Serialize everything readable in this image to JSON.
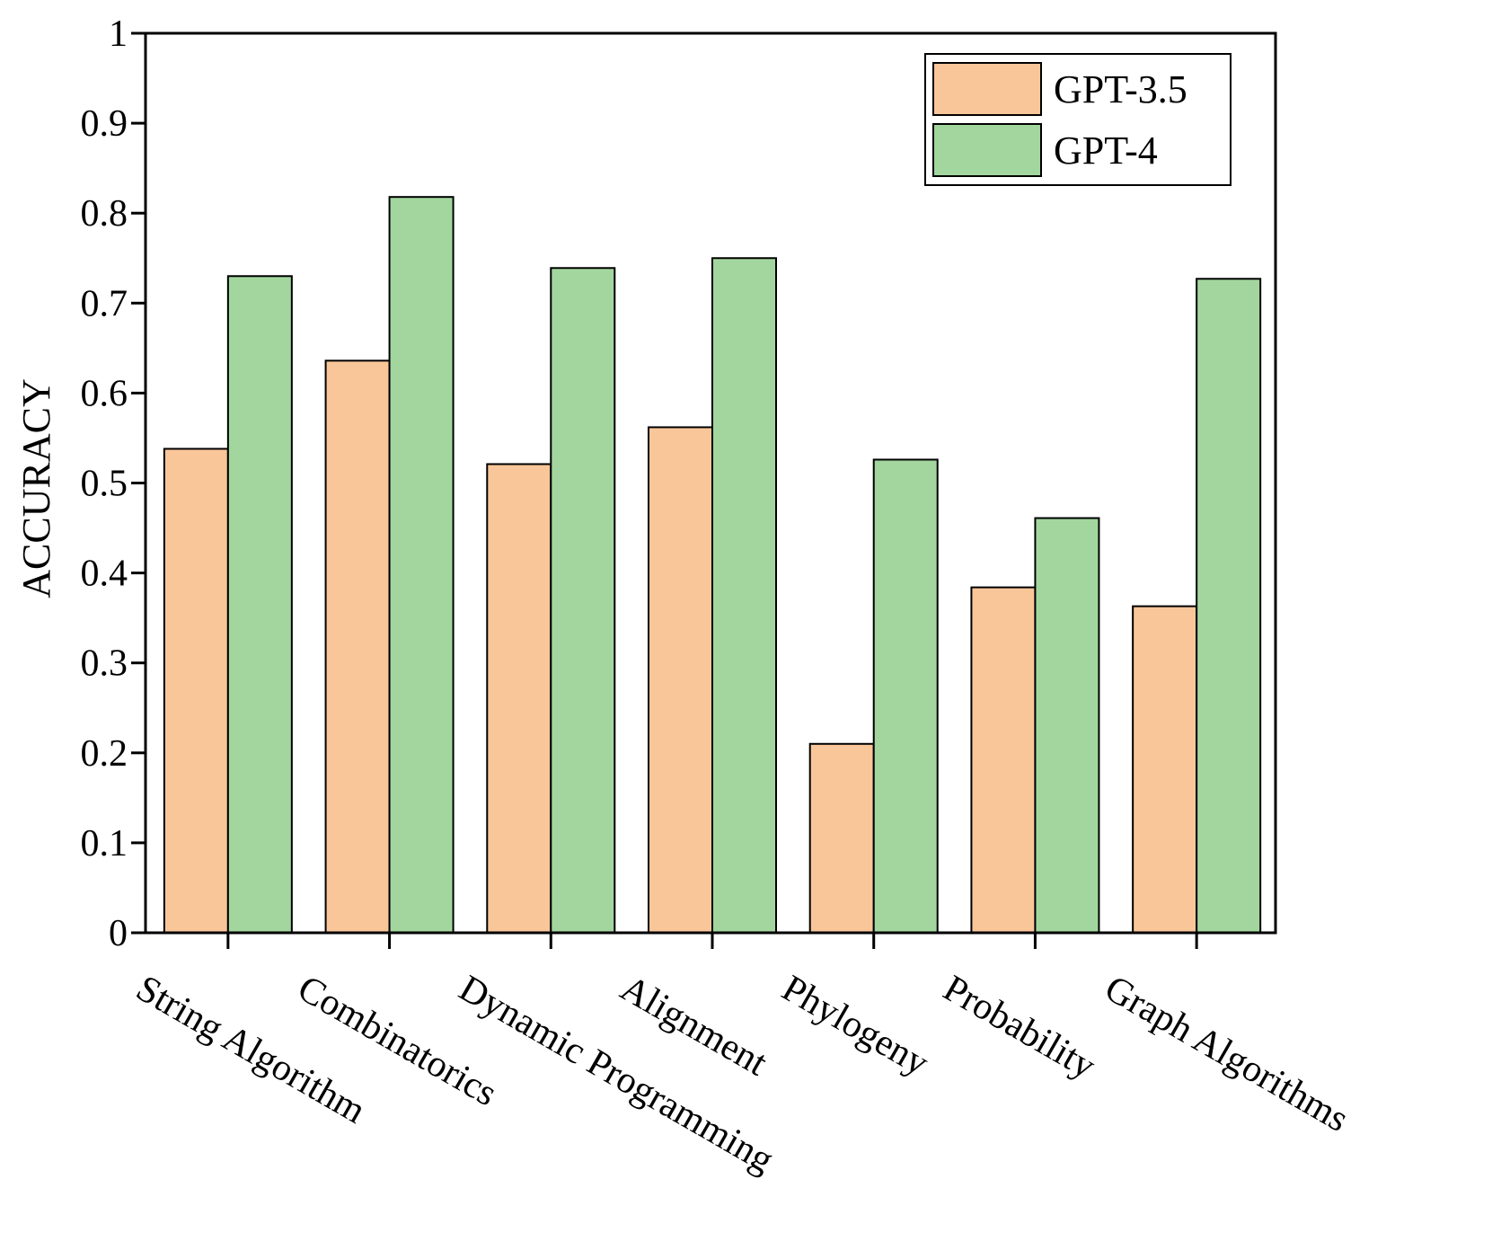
{
  "chart_data": {
    "type": "bar",
    "title": "",
    "xlabel": "",
    "ylabel": "ACCURACY",
    "ylim": [
      0,
      1
    ],
    "yticks": [
      "0",
      "0.1",
      "0.2",
      "0.3",
      "0.4",
      "0.5",
      "0.6",
      "0.7",
      "0.8",
      "0.9",
      "1"
    ],
    "categories": [
      "String Algorithm",
      "Combinatorics",
      "Dynamic Programming",
      "Alignment",
      "Phylogeny",
      "Probability",
      "Graph Algorithms"
    ],
    "series": [
      {
        "name": "GPT-3.5",
        "color": "#f9c69a",
        "values": [
          0.538,
          0.636,
          0.521,
          0.562,
          0.21,
          0.384,
          0.363
        ]
      },
      {
        "name": "GPT-4",
        "color": "#a2d69e",
        "values": [
          0.73,
          0.818,
          0.739,
          0.75,
          0.526,
          0.461,
          0.727
        ]
      }
    ],
    "legend_position": "top-right",
    "grid": false
  }
}
